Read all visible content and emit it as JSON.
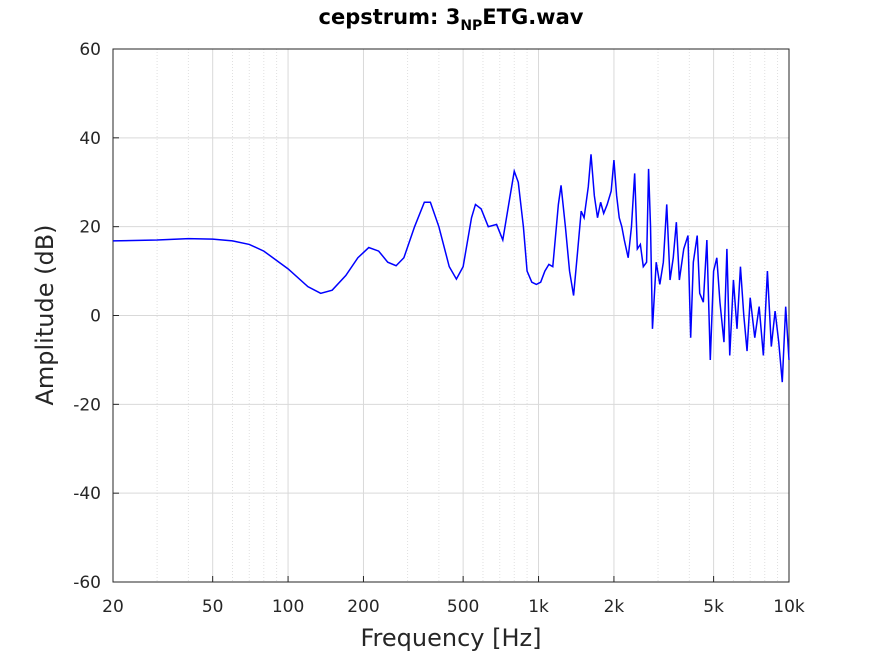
{
  "chart_data": {
    "type": "line",
    "title": [
      "cepstrum: 3",
      "NP",
      "ETG.wav"
    ],
    "x_label": "Frequency  [Hz]",
    "y_label": "Amplitude (dB)",
    "x_scale": "log",
    "grid": true,
    "xlim": [
      20,
      10000
    ],
    "ylim": [
      -60,
      60
    ],
    "xticks": [
      20,
      50,
      100,
      200,
      500,
      {
        "value": 1000,
        "label": "1k"
      },
      {
        "value": 2000,
        "label": "2k"
      },
      {
        "value": 5000,
        "label": "5k"
      },
      {
        "value": 10000,
        "label": "10k"
      }
    ],
    "xminorticks": [
      30,
      40,
      60,
      70,
      80,
      90,
      300,
      400,
      600,
      700,
      800,
      900,
      3000,
      4000,
      6000,
      7000,
      8000,
      9000
    ],
    "yticks": [
      -60,
      -40,
      -20,
      0,
      20,
      40,
      60
    ],
    "x": [
      20,
      30,
      40,
      50,
      60,
      70,
      80,
      100,
      120,
      135,
      150,
      170,
      190,
      210,
      230,
      250,
      270,
      290,
      320,
      350,
      370,
      400,
      440,
      470,
      500,
      540,
      560,
      590,
      630,
      680,
      720,
      760,
      800,
      830,
      870,
      900,
      940,
      980,
      1020,
      1060,
      1100,
      1140,
      1200,
      1230,
      1280,
      1330,
      1380,
      1430,
      1480,
      1520,
      1580,
      1620,
      1670,
      1720,
      1770,
      1820,
      1880,
      1950,
      2000,
      2050,
      2100,
      2150,
      2200,
      2280,
      2350,
      2420,
      2480,
      2550,
      2620,
      2700,
      2750,
      2800,
      2850,
      2950,
      3050,
      3150,
      3250,
      3350,
      3450,
      3550,
      3650,
      3800,
      3950,
      4050,
      4150,
      4300,
      4400,
      4550,
      4700,
      4850,
      5000,
      5150,
      5300,
      5500,
      5650,
      5800,
      6000,
      6200,
      6400,
      6600,
      6800,
      7000,
      7300,
      7600,
      7900,
      8200,
      8500,
      8800,
      9100,
      9400,
      9700,
      10000
    ],
    "series": [
      {
        "color": "#0000ff",
        "values": [
          16.8,
          17,
          17.3,
          17.2,
          16.8,
          16,
          14.5,
          10.5,
          6.5,
          5,
          5.7,
          9,
          13,
          15.3,
          14.5,
          12,
          11.2,
          13,
          20,
          25.5,
          25.5,
          20,
          11,
          8.2,
          11,
          22,
          25,
          24,
          20,
          20.5,
          17,
          25,
          32.5,
          30,
          20,
          10,
          7.5,
          7,
          7.5,
          10,
          11.5,
          11,
          25,
          29.3,
          20,
          10,
          4.5,
          14,
          23.5,
          22,
          29,
          36.3,
          27,
          22,
          25.5,
          23,
          25,
          28,
          35,
          27,
          22,
          20,
          17,
          13,
          20,
          32,
          15,
          16,
          11,
          12,
          33,
          20,
          -3,
          12,
          7,
          12,
          25,
          8,
          13,
          21,
          8,
          15,
          18,
          -5,
          12,
          18,
          5,
          3,
          17,
          -10,
          10,
          13,
          3,
          -6,
          15,
          -9,
          8,
          -3,
          11,
          0,
          -8,
          4,
          -5,
          2,
          -9,
          10,
          -7,
          1,
          -6,
          -15,
          2,
          -10
        ]
      }
    ]
  }
}
